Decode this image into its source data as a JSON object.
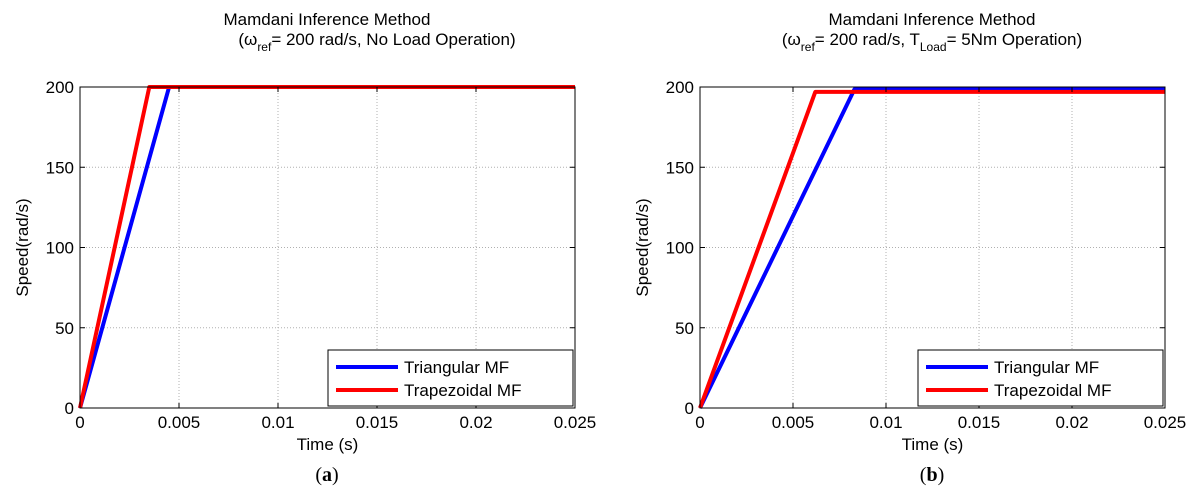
{
  "chart_data": [
    {
      "type": "line",
      "panel_label": "a",
      "title": "Mamdani Inference Method",
      "subtitle": {
        "open": "(",
        "omega": "ω",
        "omega_sub": "ref",
        "rest": "= 200 rad/s, No Load Operation)"
      },
      "xlabel": "Time (s)",
      "ylabel": "Speed(rad/s)",
      "xlim": [
        0,
        0.025
      ],
      "ylim": [
        0,
        200
      ],
      "xticks": [
        "0",
        "0.005",
        "0.01",
        "0.015",
        "0.02",
        "0.025"
      ],
      "yticks": [
        "0",
        "50",
        "100",
        "150",
        "200"
      ],
      "grid": true,
      "legend_position": "bottom-right",
      "series": [
        {
          "name": "Triangular MF",
          "color": "#0000ff",
          "x": [
            0,
            0.0045,
            0.025
          ],
          "y": [
            0,
            200,
            200
          ]
        },
        {
          "name": "Trapezoidal MF",
          "color": "#ff0000",
          "x": [
            0,
            0.0035,
            0.025
          ],
          "y": [
            0,
            200,
            200
          ]
        }
      ]
    },
    {
      "type": "line",
      "panel_label": "b",
      "title": "Mamdani Inference Method",
      "subtitle": {
        "open": "(",
        "omega": "ω",
        "omega_sub": "ref",
        "mid": "= 200 rad/s, T",
        "t_sub": "Load",
        "rest": "= 5Nm Operation)"
      },
      "xlabel": "Time (s)",
      "ylabel": "Speed(rad/s)",
      "xlim": [
        0,
        0.025
      ],
      "ylim": [
        0,
        200
      ],
      "xticks": [
        "0",
        "0.005",
        "0.01",
        "0.015",
        "0.02",
        "0.025"
      ],
      "yticks": [
        "0",
        "50",
        "100",
        "150",
        "200"
      ],
      "grid": true,
      "legend_position": "bottom-right",
      "series": [
        {
          "name": "Triangular MF",
          "color": "#0000ff",
          "x": [
            0,
            0.0083,
            0.025
          ],
          "y": [
            0,
            198.5,
            198.5
          ]
        },
        {
          "name": "Trapezoidal MF",
          "color": "#ff0000",
          "x": [
            0,
            0.0062,
            0.025
          ],
          "y": [
            0,
            197,
            197
          ]
        }
      ]
    }
  ]
}
